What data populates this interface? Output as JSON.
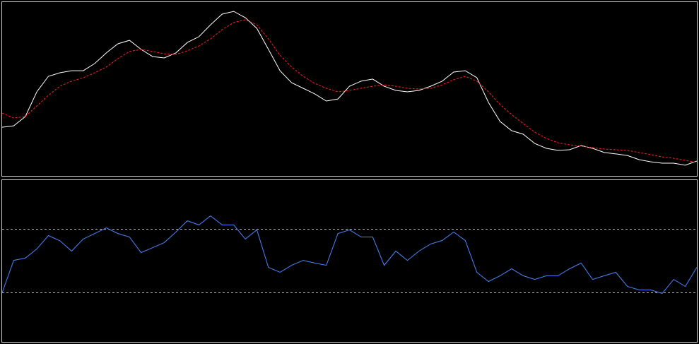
{
  "chart_data": [
    {
      "type": "line",
      "ylim": [
        0,
        100
      ],
      "series": [
        {
          "color": "#ffffff",
          "values": [
            28.3,
            29.1,
            34.4,
            48.6,
            57.5,
            59.5,
            60.7,
            60.7,
            64.8,
            70.9,
            76.1,
            78.1,
            72.9,
            68.8,
            68.0,
            70.9,
            76.9,
            80.2,
            87.0,
            93.1,
            94.7,
            91.1,
            85.0,
            72.9,
            60.7,
            53.8,
            50.6,
            47.4,
            43.3,
            44.5,
            51.8,
            54.7,
            55.9,
            51.8,
            49.4,
            48.6,
            49.4,
            51.8,
            54.7,
            59.9,
            60.7,
            56.7,
            42.5,
            31.6,
            26.3,
            24.3,
            19.0,
            16.2,
            15.0,
            15.4,
            17.8,
            16.2,
            13.8,
            13.0,
            12.1,
            9.7,
            8.5,
            7.7,
            7.7,
            6.5,
            8.9
          ]
        },
        {
          "color": "#ff2020",
          "dash": true,
          "values": [
            36.4,
            33.6,
            34.4,
            40.5,
            46.6,
            51.8,
            54.7,
            56.7,
            59.5,
            62.8,
            67.6,
            71.7,
            72.9,
            71.7,
            70.4,
            70.0,
            72.1,
            74.9,
            78.9,
            84.2,
            88.3,
            89.9,
            87.0,
            78.9,
            69.6,
            62.8,
            57.5,
            53.4,
            50.6,
            48.6,
            49.4,
            50.6,
            51.8,
            52.6,
            51.8,
            50.6,
            50.2,
            50.6,
            52.6,
            55.5,
            57.5,
            54.7,
            48.6,
            41.3,
            35.6,
            30.4,
            25.5,
            21.9,
            19.4,
            18.2,
            17.4,
            16.6,
            15.8,
            15.4,
            15.0,
            13.8,
            12.6,
            11.3,
            10.5,
            9.3,
            8.1
          ]
        }
      ]
    },
    {
      "type": "line",
      "ylim": [
        0,
        100
      ],
      "hlines": [
        30,
        70
      ],
      "series": [
        {
          "color": "#4a86ff",
          "values": [
            30,
            50.4,
            51.8,
            57.6,
            66,
            62.7,
            56.2,
            63.8,
            67.3,
            70.9,
            67.3,
            65.1,
            55.3,
            58.4,
            61.6,
            68.2,
            75.3,
            72.7,
            78.4,
            72.7,
            72.7,
            63.8,
            69.6,
            46,
            42.9,
            47.3,
            50.4,
            48.7,
            47.3,
            67.3,
            69.6,
            65.1,
            65.1,
            47.3,
            56.2,
            50.4,
            56.2,
            60.7,
            62.9,
            68.2,
            62.9,
            42.9,
            37.1,
            40.7,
            45.1,
            40.7,
            38.4,
            40.7,
            40.7,
            45.1,
            48.7,
            38.4,
            40.7,
            42.9,
            34,
            31.8,
            31.8,
            29.6,
            38.4,
            34,
            46
          ]
        }
      ]
    }
  ]
}
